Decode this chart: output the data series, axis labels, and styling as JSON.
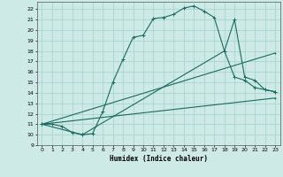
{
  "xlabel": "Humidex (Indice chaleur)",
  "bg_color": "#ceeae6",
  "grid_color": "#aad4d0",
  "line_color": "#1a6b5e",
  "xlim": [
    -0.5,
    23.5
  ],
  "ylim": [
    9,
    22.7
  ],
  "xticks": [
    0,
    1,
    2,
    3,
    4,
    5,
    6,
    7,
    8,
    9,
    10,
    11,
    12,
    13,
    14,
    15,
    16,
    17,
    18,
    19,
    20,
    21,
    22,
    23
  ],
  "yticks": [
    9,
    10,
    11,
    12,
    13,
    14,
    15,
    16,
    17,
    18,
    19,
    20,
    21,
    22
  ],
  "line1_x": [
    0,
    1,
    2,
    3,
    4,
    5,
    6,
    7,
    8,
    9,
    10,
    11,
    12,
    13,
    14,
    15,
    16,
    17,
    18,
    19,
    20,
    21,
    22,
    23
  ],
  "line1_y": [
    11.0,
    11.0,
    10.8,
    10.2,
    10.0,
    10.1,
    12.2,
    15.0,
    17.2,
    19.3,
    19.5,
    21.1,
    21.2,
    21.5,
    22.1,
    22.3,
    21.8,
    21.2,
    18.0,
    15.5,
    15.2,
    14.5,
    14.3,
    14.1
  ],
  "line2_x": [
    0,
    4,
    18,
    19,
    20,
    21,
    22,
    23
  ],
  "line2_y": [
    11.0,
    10.0,
    18.0,
    21.0,
    15.5,
    15.2,
    14.3,
    14.1
  ],
  "line3_x": [
    0,
    23
  ],
  "line3_y": [
    11.0,
    13.5
  ],
  "line4_x": [
    0,
    23
  ],
  "line4_y": [
    11.0,
    17.8
  ]
}
